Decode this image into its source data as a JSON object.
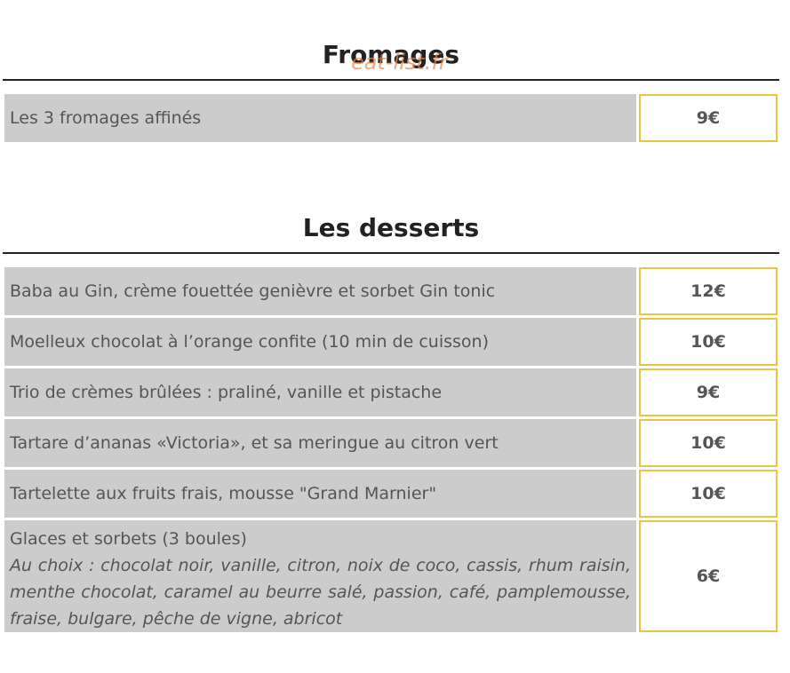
{
  "watermark": "eat-list.fr",
  "sections": [
    {
      "title": "Fromages",
      "items": [
        {
          "name": "Les 3 fromages affinés",
          "price": "9€"
        }
      ]
    },
    {
      "title": "Les desserts",
      "items": [
        {
          "name": "Baba au Gin, crème fouettée genièvre et sorbet Gin tonic",
          "price": "12€"
        },
        {
          "name": "Moelleux chocolat à l’orange confite (10 min de cuisson)",
          "price": "10€"
        },
        {
          "name": "Trio de crèmes brûlées : praliné, vanille et pistache",
          "price": "9€"
        },
        {
          "name": "Tartare d’ananas «Victoria», et sa meringue au citron vert",
          "price": "10€"
        },
        {
          "name": "Tartelette aux fruits frais, mousse \"Grand Marnier\"",
          "price": "10€"
        },
        {
          "name": "Glaces et sorbets (3 boules)",
          "description": "Au choix : chocolat noir, vanille, citron, noix de coco, cassis, rhum raisin, menthe chocolat, caramel au beurre salé, passion, café, pamplemousse, fraise, bulgare,  pêche de vigne, abricot",
          "price": "6€"
        }
      ]
    }
  ]
}
